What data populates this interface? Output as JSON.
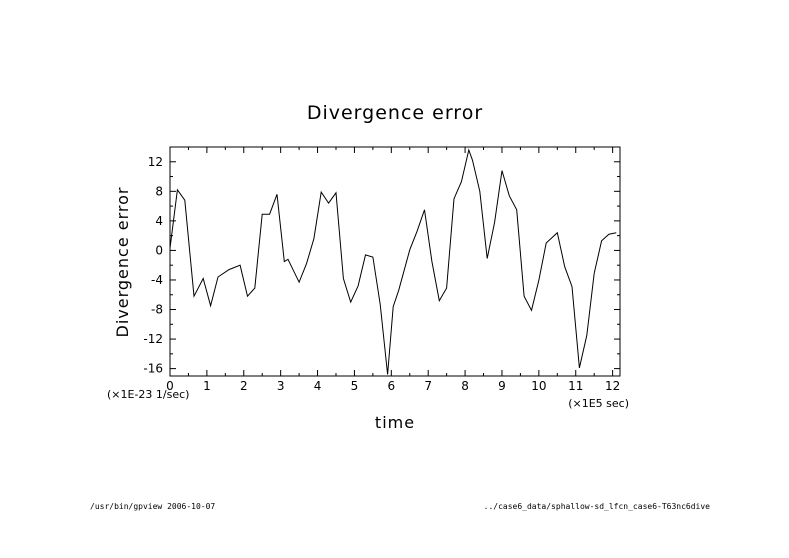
{
  "chart_data": {
    "type": "line",
    "title": "Divergence error",
    "xlabel": "time",
    "ylabel": "Divergence error",
    "x_unit_label": "(×1E5 sec)",
    "y_unit_label": "(×1E-23 1/sec)",
    "xlim": [
      0,
      12.2
    ],
    "ylim": [
      -17,
      14
    ],
    "xticks": [
      "0",
      "1",
      "2",
      "3",
      "4",
      "5",
      "6",
      "7",
      "8",
      "9",
      "10",
      "11",
      "12"
    ],
    "yticks": [
      "12",
      "8",
      "4",
      "0",
      "-4",
      "-8",
      "-12",
      "-16"
    ],
    "grid": false,
    "series": [
      {
        "x": [
          0,
          0.2,
          0.4,
          0.65,
          0.9,
          1.1,
          1.3,
          1.6,
          1.9,
          2.1,
          2.3,
          2.5,
          2.7,
          2.9,
          3.1,
          3.2,
          3.5,
          3.7,
          3.9,
          4.1,
          4.3,
          4.5,
          4.7,
          4.9,
          5.1,
          5.3,
          5.5,
          5.7,
          5.9,
          6.05,
          6.2,
          6.5,
          6.7,
          6.9,
          7.1,
          7.3,
          7.5,
          7.7,
          7.9,
          8.1,
          8.2,
          8.4,
          8.6,
          8.8,
          9.0,
          9.2,
          9.4,
          9.6,
          9.8,
          10.0,
          10.2,
          10.5,
          10.7,
          10.9,
          11.1,
          11.3,
          11.5,
          11.7,
          11.9,
          12.1
        ],
        "y": [
          0.3,
          8.2,
          6.8,
          -6.2,
          -3.8,
          -7.5,
          -3.6,
          -2.6,
          -2.0,
          -6.2,
          -5.1,
          4.9,
          4.9,
          7.6,
          -1.5,
          -1.2,
          -4.3,
          -1.8,
          1.6,
          7.9,
          6.4,
          7.8,
          -3.8,
          -7.0,
          -4.8,
          -0.6,
          -0.9,
          -7.3,
          -16.8,
          -7.6,
          -5.4,
          0.1,
          2.6,
          5.5,
          -1.5,
          -6.8,
          -5.1,
          7.0,
          9.3,
          13.6,
          12.2,
          8.0,
          -1.1,
          3.8,
          10.8,
          7.4,
          5.5,
          -6.2,
          -8.1,
          -4.0,
          1.0,
          2.4,
          -2.2,
          -4.9,
          -15.9,
          -11.5,
          -3.1,
          1.3,
          2.2,
          2.4
        ]
      }
    ]
  },
  "footer": {
    "left": "/usr/bin/gpview  2006-10-07",
    "right": "../case6_data/sphallow-sd_lfcn_case6-T63nc6dive"
  }
}
